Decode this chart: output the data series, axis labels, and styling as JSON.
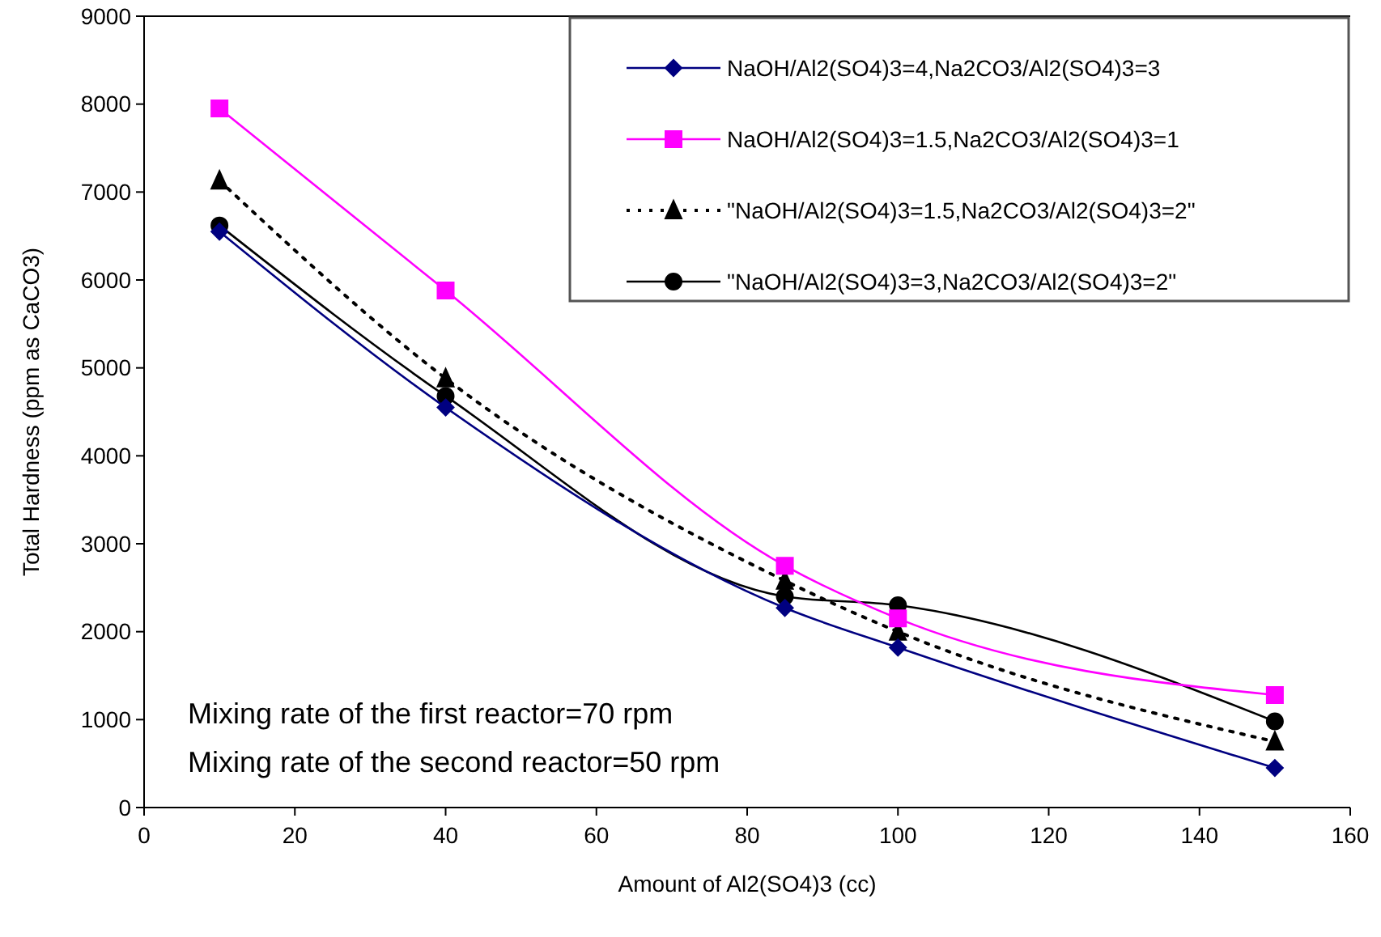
{
  "chart_data": {
    "type": "line",
    "xlabel": "Amount of Al2(SO4)3 (cc)",
    "ylabel": "Total Hardness (ppm as CaCO3)",
    "x": [
      10,
      40,
      85,
      100,
      150
    ],
    "series": [
      {
        "name": "NaOH/Al2(SO4)3=4,Na2CO3/Al2(SO4)3=3",
        "color": "#000080",
        "marker": "diamond",
        "line_style": "solid",
        "values": [
          6550,
          4550,
          2270,
          1820,
          450
        ]
      },
      {
        "name": "NaOH/Al2(SO4)3=1.5,Na2CO3/Al2(SO4)3=1",
        "color": "#ff00ff",
        "marker": "square",
        "line_style": "solid",
        "values": [
          7950,
          5880,
          2750,
          2150,
          1280
        ]
      },
      {
        "name": "\"NaOH/Al2(SO4)3=1.5,Na2CO3/Al2(SO4)3=2\"",
        "color": "#000000",
        "marker": "triangle",
        "line_style": "dotted",
        "values": [
          7130,
          4880,
          2580,
          2000,
          750
        ]
      },
      {
        "name": "\"NaOH/Al2(SO4)3=3,Na2CO3/Al2(SO4)3=2\"",
        "color": "#000000",
        "marker": "circle",
        "line_style": "solid",
        "values": [
          6620,
          4680,
          2400,
          2300,
          980
        ]
      }
    ],
    "xlim": [
      0,
      160
    ],
    "xticks": [
      0,
      20,
      40,
      60,
      80,
      100,
      120,
      140,
      160
    ],
    "ylim": [
      0,
      9000
    ],
    "yticks": [
      0,
      1000,
      2000,
      3000,
      4000,
      5000,
      6000,
      7000,
      8000,
      9000
    ],
    "grid": false,
    "legend": "top right",
    "annotations": [
      "Mixing rate of the first reactor=70 rpm",
      "Mixing rate of the second reactor=50 rpm"
    ]
  }
}
